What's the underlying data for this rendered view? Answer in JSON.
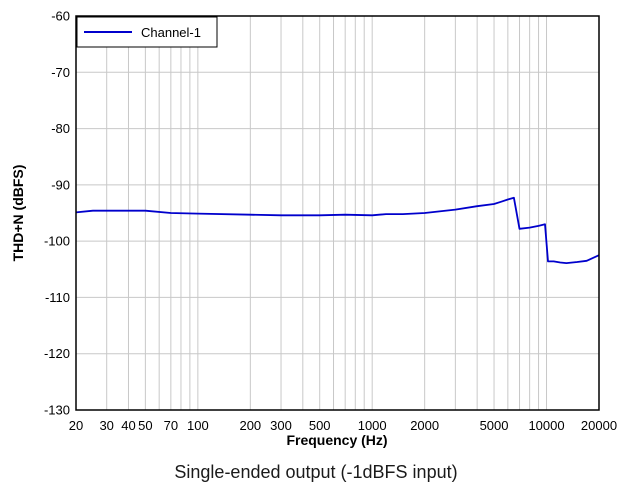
{
  "chart_data": {
    "type": "line",
    "xlabel": "Frequency (Hz)",
    "ylabel": "THD+N (dBFS)",
    "x_scale": "log",
    "xlim": [
      20,
      20000
    ],
    "ylim": [
      -130,
      -60
    ],
    "grid": true,
    "x_ticks": [
      20,
      30,
      40,
      50,
      70,
      100,
      200,
      300,
      500,
      1000,
      2000,
      5000,
      10000,
      20000
    ],
    "x_tick_labels": [
      "20",
      "30",
      "40",
      "50",
      "70",
      "100",
      "200",
      "300",
      "500",
      "1000",
      "2000",
      "5000",
      "10000",
      "20000"
    ],
    "y_ticks": [
      -60,
      -70,
      -80,
      -90,
      -100,
      -110,
      -120,
      -130
    ],
    "y_tick_labels": [
      "-60",
      "-70",
      "-80",
      "-90",
      "-100",
      "-110",
      "-120",
      "-130"
    ],
    "legend": {
      "placement": "top-left"
    },
    "series": [
      {
        "name": "Channel-1",
        "color": "#0000cc",
        "x": [
          20,
          25,
          30,
          40,
          50,
          70,
          100,
          200,
          300,
          500,
          700,
          1000,
          1200,
          1500,
          2000,
          3000,
          4000,
          5000,
          5500,
          6000,
          6500,
          7000,
          8000,
          9000,
          9800,
          10200,
          11000,
          12000,
          13000,
          15000,
          17000,
          20000
        ],
        "y": [
          -94.9,
          -94.6,
          -94.6,
          -94.6,
          -94.6,
          -95.0,
          -95.1,
          -95.3,
          -95.4,
          -95.4,
          -95.3,
          -95.4,
          -95.2,
          -95.2,
          -95.0,
          -94.4,
          -93.8,
          -93.4,
          -93.0,
          -92.6,
          -92.3,
          -97.8,
          -97.6,
          -97.3,
          -97.0,
          -103.6,
          -103.6,
          -103.8,
          -103.9,
          -103.7,
          -103.5,
          -102.5
        ]
      }
    ]
  },
  "caption": "Single-ended output (-1dBFS input)"
}
